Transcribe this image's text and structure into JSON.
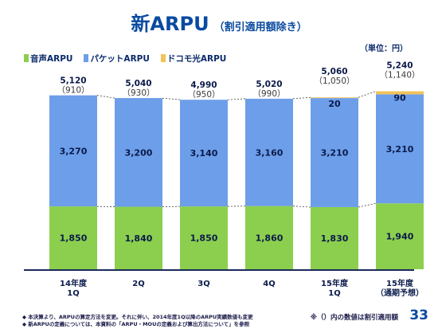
{
  "title": "新ARPU",
  "subtitle": "（割引適用額除き）",
  "unit": "（単位：円）",
  "legend": [
    {
      "label": "音声ARPU",
      "color": "#8ccf4e"
    },
    {
      "label": "パケットARPU",
      "color": "#6d9ee9"
    },
    {
      "label": "ドコモ光ARPU",
      "color": "#f2c35a"
    }
  ],
  "chart_data": {
    "type": "bar",
    "stacked": true,
    "categories": [
      "14年度\n1Q",
      "2Q",
      "3Q",
      "4Q",
      "15年度\n1Q",
      "15年度\n（通期予想）"
    ],
    "series": [
      {
        "name": "音声ARPU",
        "values": [
          1850,
          1840,
          1850,
          1860,
          1830,
          1940
        ]
      },
      {
        "name": "パケットARPU",
        "values": [
          3270,
          3200,
          3140,
          3160,
          3210,
          3210
        ]
      },
      {
        "name": "ドコモ光ARPU",
        "values": [
          0,
          0,
          0,
          0,
          20,
          90
        ]
      }
    ],
    "totals": [
      "5,120",
      "5,040",
      "4,990",
      "5,020",
      "5,060",
      "5,240"
    ],
    "discounts": [
      "（910）",
      "（930）",
      "（950）",
      "（990）",
      "（1,050）",
      "（1,140）"
    ],
    "ylim": [
      0,
      5300
    ]
  },
  "footnotes": [
    "◆ 本決算より、ARPUの算定方法を変更。それに伴い、2014年度1Q以降のARPU実績数値も変更",
    "◆ 新ARPUの定義については、本資料の「ARPU・MOUの定義および算出方法について」を参照"
  ],
  "note_right": "※（）内の数値は割引適用額",
  "page_number": "33"
}
